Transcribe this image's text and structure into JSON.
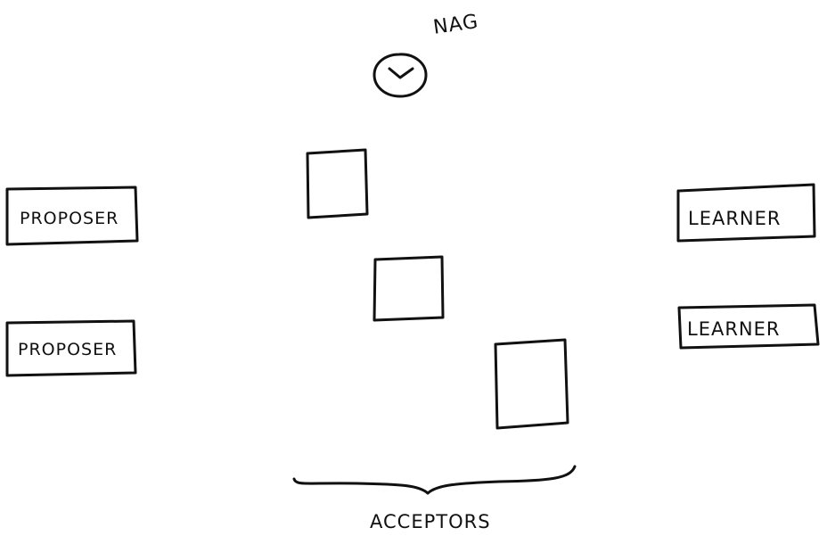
{
  "labels": {
    "nag": "NAG",
    "proposers": [
      "PROPOSER",
      "PROPOSER"
    ],
    "learners": [
      "LEARNER",
      "LEARNER"
    ],
    "acceptors": "ACCEPTORS"
  },
  "icons": {
    "clock": "clock-icon"
  },
  "colors": {
    "ink": "#111111",
    "background": "#ffffff"
  }
}
